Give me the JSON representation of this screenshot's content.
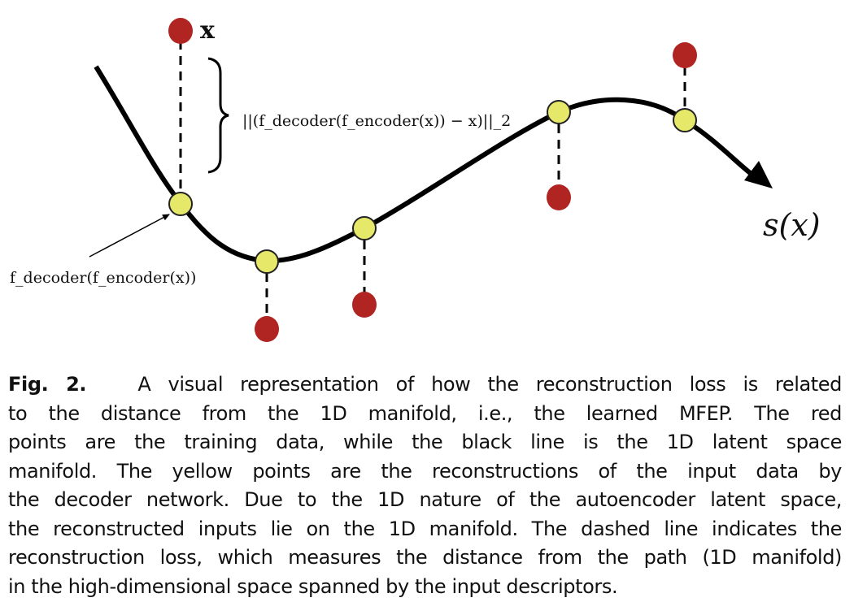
{
  "figure": {
    "labels": {
      "input_point": "x",
      "loss": "||(f_decoder(f_encoder(x)) − x)||_2",
      "reconstruction": "f_decoder(f_encoder(x))",
      "manifold": "s(x)"
    },
    "colors": {
      "training_point": "#b02422",
      "reconstruction_point": "#e6e86a",
      "manifold_line": "#000000"
    }
  },
  "caption": {
    "label": "Fig. 2.",
    "lines": [
      "A visual representation of how the reconstruction loss is related",
      "to the distance from the 1D manifold, i.e., the learned MFEP. The red",
      "points are the training data, while the black line is the 1D latent space",
      "manifold. The yellow points are the reconstructions of the input data by",
      "the decoder network. Due to the 1D nature of the autoencoder latent space,",
      "the reconstructed inputs lie on the 1D manifold. The dashed line indicates the",
      "reconstruction loss, which measures the distance from the path (1D manifold)",
      "in the high-dimensional space spanned by the input descriptors."
    ]
  }
}
